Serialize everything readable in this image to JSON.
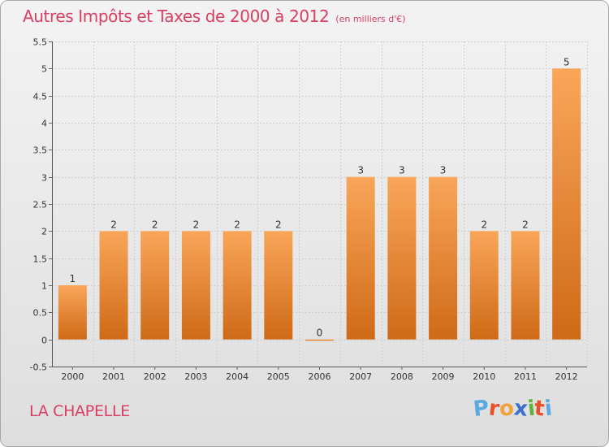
{
  "chart_data": {
    "type": "bar",
    "title": "Autres Impôts et Taxes de 2000 à 2012",
    "subtitle": "(en milliers d'€)",
    "categories": [
      "2000",
      "2001",
      "2002",
      "2003",
      "2004",
      "2005",
      "2006",
      "2007",
      "2008",
      "2009",
      "2010",
      "2011",
      "2012"
    ],
    "values": [
      1,
      2,
      2,
      2,
      2,
      2,
      0,
      3,
      3,
      3,
      2,
      2,
      5
    ],
    "data_labels": [
      "1",
      "2",
      "2",
      "2",
      "2",
      "2",
      "0",
      "3",
      "3",
      "3",
      "2",
      "2",
      "5"
    ],
    "ylim": [
      -0.5,
      5.5
    ],
    "yticks": [
      "-0.5",
      "0",
      "0.5",
      "1",
      "1.5",
      "2",
      "2.5",
      "3",
      "3.5",
      "4",
      "4.5",
      "5",
      "5.5"
    ],
    "grid": true,
    "bar_color": "#f0903a"
  },
  "footer": {
    "commune": "LA CHAPELLE",
    "brand": "Proxiti"
  },
  "colors": {
    "title": "#d93e63",
    "brand_letters": [
      "#5aa9e0",
      "#e8502b",
      "#f2a23a",
      "#3b6fd0",
      "#5db33b",
      "#e8502b",
      "#5aa9e0"
    ]
  }
}
